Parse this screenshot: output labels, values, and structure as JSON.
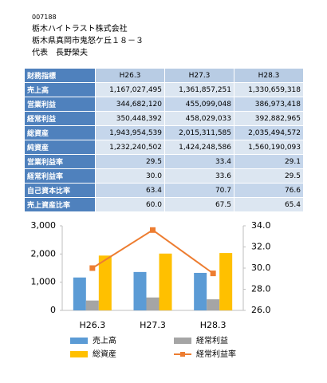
{
  "header": {
    "code": "007188",
    "company": "栃木ハイトラスト株式会社",
    "address": "栃木県真岡市鬼怒ケ丘１８－３",
    "representative": "代表　長野榮夫"
  },
  "table": {
    "header": [
      "財務指標",
      "H26.3",
      "H27.3",
      "H28.3"
    ],
    "rows": [
      [
        "売上高",
        "1,167,027,495",
        "1,361,857,251",
        "1,330,659,318"
      ],
      [
        "営業利益",
        "344,682,120",
        "455,099,048",
        "386,973,418"
      ],
      [
        "経常利益",
        "350,448,392",
        "458,029,033",
        "392,882,965"
      ],
      [
        "総資産",
        "1,943,954,539",
        "2,015,311,585",
        "2,035,494,572"
      ],
      [
        "純資産",
        "1,232,240,502",
        "1,424,248,586",
        "1,560,190,093"
      ],
      [
        "営業利益率",
        "29.5",
        "33.4",
        "29.1"
      ],
      [
        "経常利益率",
        "30.0",
        "33.6",
        "29.5"
      ],
      [
        "自己資本比率",
        "63.4",
        "70.7",
        "76.6"
      ],
      [
        "売上資産比率",
        "60.0",
        "67.5",
        "65.4"
      ]
    ]
  },
  "chart_data": {
    "type": "bar",
    "categories": [
      "H26.3",
      "H27.3",
      "H28.3"
    ],
    "series": [
      {
        "name": "売上高",
        "color": "#5b9bd5",
        "values": [
          1167,
          1362,
          1331
        ]
      },
      {
        "name": "経常利益",
        "color": "#a5a5a5",
        "values": [
          350,
          458,
          393
        ]
      },
      {
        "name": "総資産",
        "color": "#ffc000",
        "values": [
          1944,
          2015,
          2035
        ]
      },
      {
        "name": "経常利益率",
        "color": "#ed7d31",
        "axis": "y2",
        "values": [
          30.0,
          33.6,
          29.5
        ]
      }
    ],
    "ylim": [
      0,
      3000
    ],
    "yticks": [
      0,
      {
        "value": 1000,
        "label": "1,000"
      },
      {
        "value": 2000,
        "label": "2,000"
      },
      {
        "value": 3000,
        "label": "3,000"
      }
    ],
    "y2lim": [
      26,
      34
    ],
    "y2ticks": [
      {
        "value": 26,
        "label": "26.0"
      },
      {
        "value": 28,
        "label": "28.0"
      },
      {
        "value": 30,
        "label": "30.0"
      },
      {
        "value": 32,
        "label": "32.0"
      },
      {
        "value": 34,
        "label": "34.0"
      }
    ],
    "legend": "bottom"
  }
}
